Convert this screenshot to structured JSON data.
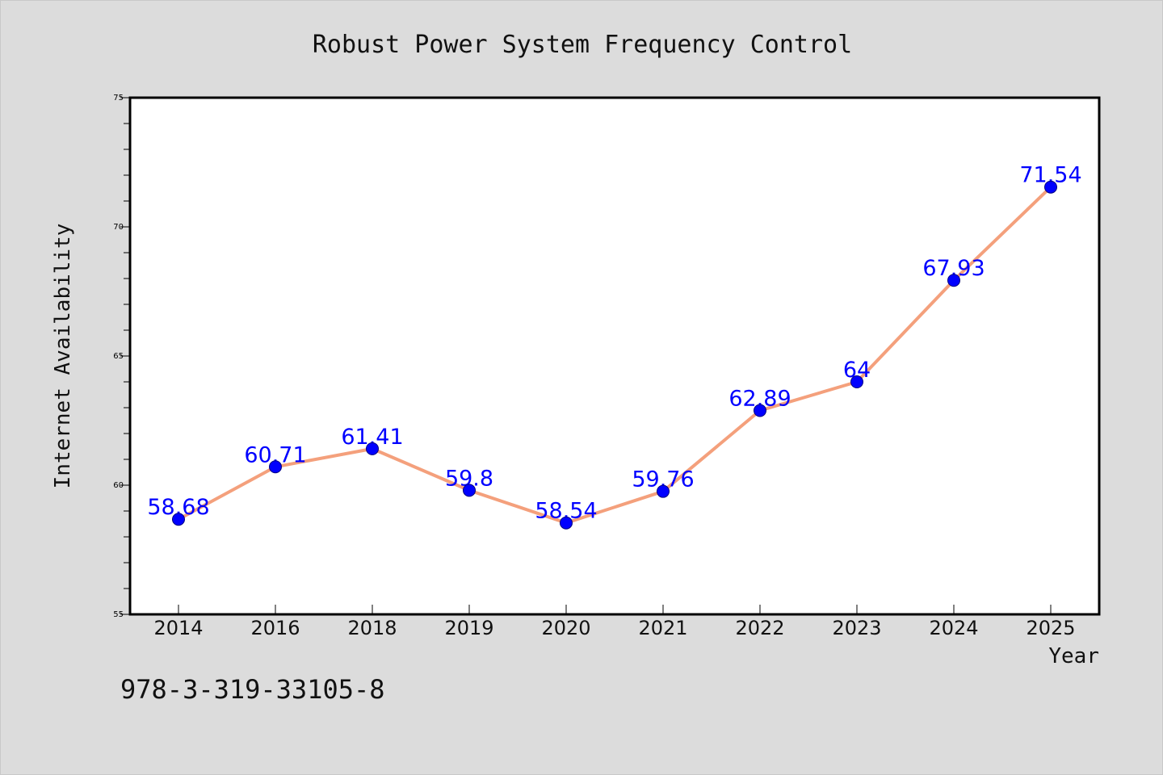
{
  "colors": {
    "background": "#dcdcdc",
    "plot_background": "#ffffff",
    "line": "#f4a07c",
    "marker": "#0000ff",
    "data_label": "#0000ff",
    "axis": "#000000"
  },
  "footer": {
    "isbn": "978-3-319-33105-8"
  },
  "chart_data": {
    "type": "line",
    "title": "Robust Power System Frequency Control",
    "xlabel": "Year",
    "ylabel": "Internet Availability",
    "categories": [
      "2014",
      "2016",
      "2018",
      "2019",
      "2020",
      "2021",
      "2022",
      "2023",
      "2024",
      "2025"
    ],
    "series": [
      {
        "values": [
          58.68,
          60.71,
          61.41,
          59.8,
          58.54,
          59.76,
          62.89,
          64,
          67.93,
          71.54
        ],
        "labels": [
          "58.68",
          "60.71",
          "61.41",
          "59.8",
          "58.54",
          "59.76",
          "62.89",
          "64",
          "67.93",
          "71.54"
        ]
      }
    ],
    "ylim": [
      55,
      75
    ],
    "yticks": [
      55,
      60,
      65,
      70,
      75
    ],
    "grid": false,
    "marker": "circle"
  }
}
